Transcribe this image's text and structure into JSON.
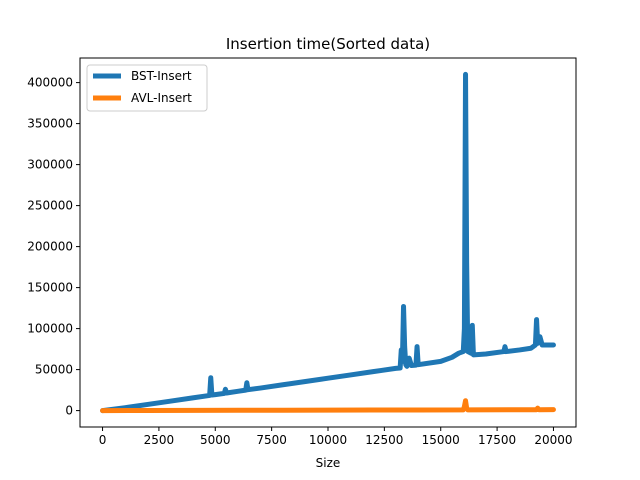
{
  "chart_data": {
    "type": "line",
    "title": "Insertion time(Sorted data)",
    "xlabel": "Size",
    "ylabel": "",
    "xlim": [
      -1000,
      21000
    ],
    "ylim": [
      -20000,
      430000
    ],
    "x_ticks": [
      0,
      2500,
      5000,
      7500,
      10000,
      12500,
      15000,
      17500,
      20000
    ],
    "y_ticks": [
      0,
      50000,
      100000,
      150000,
      200000,
      250000,
      300000,
      350000,
      400000
    ],
    "grid": false,
    "legend_position": "top-left",
    "series": [
      {
        "name": "BST-Insert",
        "color": "#1f77b4",
        "points": [
          [
            0,
            0
          ],
          [
            1000,
            3500
          ],
          [
            2000,
            7500
          ],
          [
            3000,
            11500
          ],
          [
            4000,
            15500
          ],
          [
            4750,
            18500
          ],
          [
            4800,
            40000
          ],
          [
            4850,
            19000
          ],
          [
            5000,
            19500
          ],
          [
            5400,
            21000
          ],
          [
            5450,
            26000
          ],
          [
            5500,
            21500
          ],
          [
            6000,
            23500
          ],
          [
            6350,
            25000
          ],
          [
            6400,
            34000
          ],
          [
            6450,
            25500
          ],
          [
            7000,
            27500
          ],
          [
            8000,
            31500
          ],
          [
            9000,
            35500
          ],
          [
            10000,
            39500
          ],
          [
            11000,
            43500
          ],
          [
            12000,
            47500
          ],
          [
            13000,
            51500
          ],
          [
            13200,
            52000
          ],
          [
            13250,
            74000
          ],
          [
            13300,
            60000
          ],
          [
            13350,
            127000
          ],
          [
            13400,
            78000
          ],
          [
            13450,
            56000
          ],
          [
            13500,
            54000
          ],
          [
            13600,
            64000
          ],
          [
            13700,
            55000
          ],
          [
            13900,
            55500
          ],
          [
            13950,
            78000
          ],
          [
            14000,
            56000
          ],
          [
            15000,
            60000
          ],
          [
            15500,
            65000
          ],
          [
            15800,
            70000
          ],
          [
            16000,
            72000
          ],
          [
            16050,
            100000
          ],
          [
            16100,
            410000
          ],
          [
            16150,
            180000
          ],
          [
            16200,
            72000
          ],
          [
            16350,
            70000
          ],
          [
            16400,
            104000
          ],
          [
            16450,
            68000
          ],
          [
            17000,
            69000
          ],
          [
            17800,
            72000
          ],
          [
            17850,
            78000
          ],
          [
            17900,
            72000
          ],
          [
            18500,
            74000
          ],
          [
            19000,
            76000
          ],
          [
            19200,
            80000
          ],
          [
            19250,
            111000
          ],
          [
            19300,
            82000
          ],
          [
            19400,
            90000
          ],
          [
            19500,
            80000
          ],
          [
            20000,
            80000
          ]
        ]
      },
      {
        "name": "AVL-Insert",
        "color": "#ff7f0e",
        "points": [
          [
            0,
            0
          ],
          [
            2000,
            200
          ],
          [
            4000,
            300
          ],
          [
            6000,
            400
          ],
          [
            8000,
            500
          ],
          [
            10000,
            600
          ],
          [
            12000,
            700
          ],
          [
            14000,
            800
          ],
          [
            16000,
            900
          ],
          [
            16050,
            5000
          ],
          [
            16100,
            12000
          ],
          [
            16150,
            3000
          ],
          [
            16200,
            900
          ],
          [
            18000,
            1000
          ],
          [
            19250,
            1100
          ],
          [
            19300,
            3000
          ],
          [
            19350,
            1100
          ],
          [
            20000,
            1200
          ]
        ]
      }
    ]
  }
}
